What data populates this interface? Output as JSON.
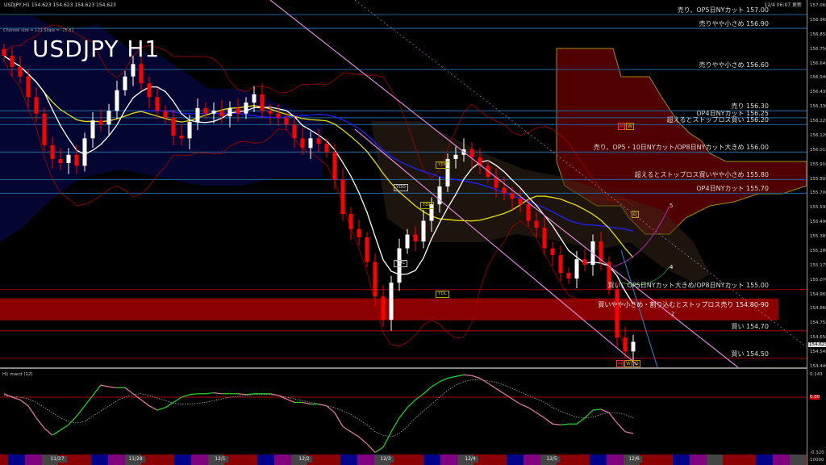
{
  "header": {
    "symbol_line": "USDJPY,H1  154.623 154.623 154.623 154.623",
    "title": "USDJPY H1",
    "channel_info": "Channel size = 121 Slope = -25.81",
    "updated": "12/4 06:07 更新"
  },
  "colors": {
    "bull": "#ffffff",
    "bear": "#ff0000",
    "level_sell": "#1e5a8c",
    "level_buy": "#8b0000",
    "band": "#8b0000",
    "macd_up": "#22cc22",
    "macd_down": "#dd7799",
    "ma_fast": "#ffffff",
    "ma_mid": "#e0e000",
    "ma_slow": "#2020ff",
    "channel": "#dd88dd"
  },
  "levels": [
    {
      "text": "売り、OP5日NYカット 157.00",
      "price": 157.0,
      "side": "sell"
    },
    {
      "text": "売りやや小さめ 156.90",
      "price": 156.9,
      "side": "sell"
    },
    {
      "text": "売りやや小さめ 156.60",
      "price": 156.6,
      "side": "sell"
    },
    {
      "text": "売り 156.30",
      "price": 156.3,
      "side": "sell"
    },
    {
      "text": "OP4日NYカット 156.25",
      "price": 156.25,
      "side": "sell"
    },
    {
      "text": "超えるとストップロス買い 156.20",
      "price": 156.2,
      "side": "sell"
    },
    {
      "text": "売り、OP5・10日NYカット/OP8日NYカット大きめ 156.00",
      "price": 156.0,
      "side": "sell"
    },
    {
      "text": "超えるとストップロス買いやや小さめ 155.80",
      "price": 155.8,
      "side": "sell"
    },
    {
      "text": "OP4日NYカット 155.70",
      "price": 155.7,
      "side": "sell"
    },
    {
      "text": "買い、OP5日NYカット大きめ/OP8日NYカット 155.00",
      "price": 155.0,
      "side": "buy"
    },
    {
      "text": "買い 154.70",
      "price": 154.7,
      "side": "buy"
    },
    {
      "text": "買い 154.50",
      "price": 154.5,
      "side": "buy"
    }
  ],
  "band": {
    "text": "買いやや小さめ・割り込むとストップロス売り 154.80-90",
    "low": 154.8,
    "high": 154.9
  },
  "markers": {
    "ydh": "YDH",
    "ydo": "YDO",
    "ydc": "YDC",
    "ydl": "YDL",
    "m": "M",
    "w": "W",
    "d": "D",
    "wave5": "5",
    "wave4": "4",
    "wave2": "2"
  },
  "axis": {
    "price_ticks": [
      "157.065",
      "156.960",
      "156.855",
      "156.750",
      "156.645",
      "156.540",
      "156.435",
      "156.330",
      "156.225",
      "156.120",
      "156.015",
      "155.910",
      "155.805",
      "155.700",
      "155.595",
      "155.490",
      "155.385",
      "155.280",
      "155.175",
      "155.070",
      "154.965",
      "154.860",
      "154.755",
      "154.650",
      "154.545",
      "154.440"
    ],
    "current_price": "154.623",
    "macd_ticks": [
      "0.143",
      "0.00",
      "-0.320"
    ],
    "bottom_value": "10000"
  },
  "macd_panel": {
    "label": "H1 macd (12)"
  },
  "dates": [
    "11/27",
    "11/28",
    "12/1",
    "12/2",
    "12/3",
    "12/4",
    "12/5",
    "12/6"
  ],
  "chart_data": {
    "type": "candlestick",
    "title": "USDJPY H1",
    "ylim": [
      154.44,
      157.065
    ],
    "closes": [
      156.7,
      156.62,
      156.55,
      156.4,
      156.28,
      156.05,
      155.95,
      155.92,
      155.98,
      155.9,
      156.1,
      156.23,
      156.2,
      156.3,
      156.45,
      156.55,
      156.64,
      156.5,
      156.4,
      156.3,
      156.25,
      156.12,
      156.1,
      156.22,
      156.32,
      156.28,
      156.3,
      156.26,
      156.32,
      156.28,
      156.36,
      156.42,
      156.3,
      156.28,
      156.25,
      156.2,
      156.1,
      156.03,
      156.1,
      156.06,
      156.0,
      155.8,
      155.55,
      155.44,
      155.38,
      155.2,
      154.95,
      154.78,
      155.05,
      155.3,
      155.4,
      155.35,
      155.5,
      155.62,
      155.75,
      155.95,
      155.98,
      156.02,
      155.96,
      155.9,
      155.82,
      155.74,
      155.7,
      155.66,
      155.62,
      155.5,
      155.45,
      155.3,
      155.25,
      155.12,
      155.08,
      155.22,
      155.18,
      155.35,
      155.2,
      155.0,
      154.65,
      154.55,
      154.62
    ],
    "macd": {
      "ylim": [
        -0.32,
        0.143
      ],
      "line": [
        0.02,
        0.0,
        -0.015,
        -0.05,
        -0.12,
        -0.18,
        -0.22,
        -0.19,
        -0.16,
        -0.11,
        -0.05,
        0.01,
        0.07,
        0.06,
        0.055,
        0.055,
        0.02,
        -0.015,
        -0.05,
        -0.075,
        -0.06,
        -0.03,
        0.0,
        0.015,
        0.02,
        0.02,
        0.025,
        0.02,
        0.02,
        0.02,
        0.015,
        0.02,
        0.02,
        0.02,
        0.01,
        -0.01,
        -0.03,
        -0.03,
        -0.04,
        -0.04,
        -0.05,
        -0.09,
        -0.17,
        -0.2,
        -0.23,
        -0.27,
        -0.32,
        -0.29,
        -0.2,
        -0.12,
        -0.06,
        -0.015,
        0.02,
        0.06,
        0.09,
        0.11,
        0.12,
        0.13,
        0.125,
        0.11,
        0.08,
        0.05,
        0.02,
        -0.01,
        -0.04,
        -0.06,
        -0.09,
        -0.12,
        -0.155,
        -0.16,
        -0.155,
        -0.155,
        -0.12,
        -0.075,
        -0.07,
        -0.09,
        -0.15,
        -0.2,
        -0.21
      ],
      "signal": [
        0.01,
        0.005,
        0.0,
        -0.01,
        -0.03,
        -0.06,
        -0.09,
        -0.12,
        -0.14,
        -0.15,
        -0.14,
        -0.11,
        -0.08,
        -0.05,
        -0.02,
        0.0,
        0.015,
        0.02,
        0.01,
        -0.005,
        -0.02,
        -0.035,
        -0.04,
        -0.04,
        -0.035,
        -0.03,
        -0.02,
        -0.01,
        0.0,
        0.005,
        0.01,
        0.015,
        0.015,
        0.015,
        0.01,
        0.0,
        -0.01,
        -0.02,
        -0.03,
        -0.04,
        -0.05,
        -0.06,
        -0.08,
        -0.1,
        -0.13,
        -0.16,
        -0.2,
        -0.22,
        -0.23,
        -0.21,
        -0.17,
        -0.12,
        -0.08,
        -0.04,
        0.0,
        0.04,
        0.07,
        0.09,
        0.1,
        0.1,
        0.095,
        0.085,
        0.07,
        0.05,
        0.03,
        0.01,
        -0.01,
        -0.03,
        -0.06,
        -0.08,
        -0.1,
        -0.115,
        -0.12,
        -0.115,
        -0.1,
        -0.09,
        -0.09,
        -0.1,
        -0.12
      ]
    }
  }
}
